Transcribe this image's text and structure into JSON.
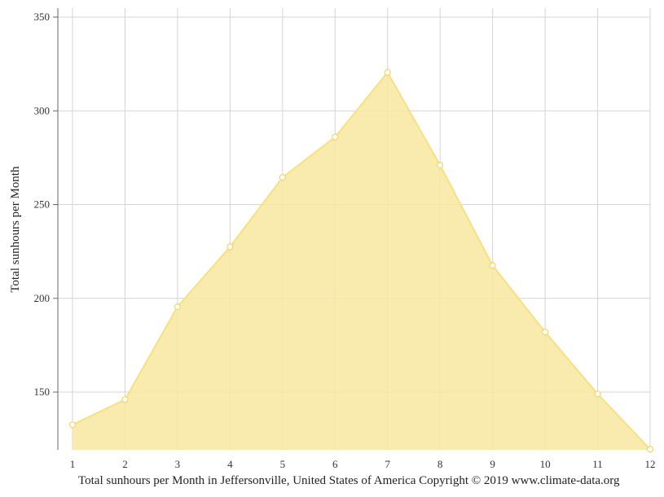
{
  "chart_data": {
    "type": "area",
    "title": "",
    "xlabel": "",
    "ylabel": "Total sunhours per Month",
    "caption": "Total sunhours per Month in Jeffersonville, United States of America Copyright © 2019 www.climate-data.org",
    "x": [
      1,
      2,
      3,
      4,
      5,
      6,
      7,
      8,
      9,
      10,
      11,
      12
    ],
    "x_tick_labels": [
      "1",
      "2",
      "3",
      "4",
      "5",
      "6",
      "7",
      "8",
      "9",
      "10",
      "11",
      "12"
    ],
    "y_ticks": [
      150,
      200,
      250,
      300,
      350
    ],
    "y_tick_labels": [
      "150",
      "200",
      "250",
      "300",
      "350"
    ],
    "ylim": [
      120,
      355
    ],
    "grid": true,
    "legend": "none",
    "series": [
      {
        "values": [
          132.5,
          146,
          195.5,
          227.5,
          264.5,
          286,
          320.5,
          271,
          217.5,
          182,
          149,
          119.5
        ]
      }
    ],
    "colors": {
      "fill": "#f8e8a0",
      "line": "#f7e07e",
      "marker_fill": "#ffffff",
      "marker_stroke": "#f2d566",
      "grid": "#d4d4d4",
      "axis": "#666666"
    }
  }
}
